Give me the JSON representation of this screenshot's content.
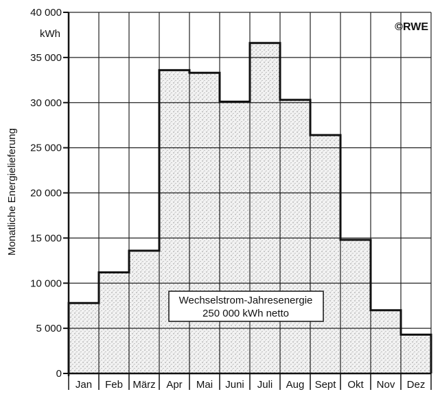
{
  "chart_data": {
    "type": "bar",
    "categories": [
      "Jan",
      "Feb",
      "März",
      "Apr",
      "Mai",
      "Juni",
      "Juli",
      "Aug",
      "Sept",
      "Okt",
      "Nov",
      "Dez"
    ],
    "values": [
      7800,
      11200,
      13600,
      33600,
      33300,
      30100,
      36600,
      30300,
      26400,
      14800,
      7000,
      4300
    ],
    "ylabel": "Monatliche Energielieferung",
    "yunit": "kWh",
    "ylim": [
      0,
      40000
    ],
    "yticks": [
      0,
      5000,
      10000,
      15000,
      20000,
      25000,
      30000,
      35000,
      40000
    ],
    "ytick_labels": [
      "0",
      "5 000",
      "10 000",
      "15 000",
      "20 000",
      "25 000",
      "30 000",
      "35 000",
      "40 000"
    ],
    "grid": true,
    "annotation": {
      "line1": "Wechselstrom-Jahresenergie",
      "line2": "250 000 kWh netto"
    },
    "copyright": "©RWE"
  }
}
